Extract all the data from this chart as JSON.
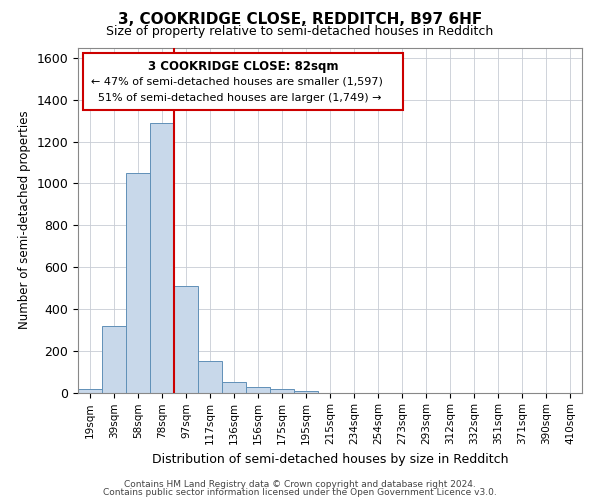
{
  "title": "3, COOKRIDGE CLOSE, REDDITCH, B97 6HF",
  "subtitle": "Size of property relative to semi-detached houses in Redditch",
  "xlabel": "Distribution of semi-detached houses by size in Redditch",
  "ylabel": "Number of semi-detached properties",
  "property_label": "3 COOKRIDGE CLOSE: 82sqm",
  "pct_smaller": 47,
  "n_smaller": 1597,
  "pct_larger": 51,
  "n_larger": 1749,
  "bar_categories": [
    "19sqm",
    "39sqm",
    "58sqm",
    "78sqm",
    "97sqm",
    "117sqm",
    "136sqm",
    "156sqm",
    "175sqm",
    "195sqm",
    "215sqm",
    "234sqm",
    "254sqm",
    "273sqm",
    "293sqm",
    "312sqm",
    "332sqm",
    "351sqm",
    "371sqm",
    "390sqm",
    "410sqm"
  ],
  "bar_values": [
    15,
    320,
    1050,
    1290,
    510,
    150,
    50,
    25,
    15,
    5,
    0,
    0,
    0,
    0,
    0,
    0,
    0,
    0,
    0,
    0,
    0
  ],
  "bar_color": "#c8d8ea",
  "bar_edge_color": "#6090b8",
  "vline_color": "#cc0000",
  "vline_x": 3.5,
  "annotation_box_color": "#cc0000",
  "grid_color": "#c8ccd4",
  "ylim": [
    0,
    1650
  ],
  "yticks": [
    0,
    200,
    400,
    600,
    800,
    1000,
    1200,
    1400,
    1600
  ],
  "footer_line1": "Contains HM Land Registry data © Crown copyright and database right 2024.",
  "footer_line2": "Contains public sector information licensed under the Open Government Licence v3.0."
}
